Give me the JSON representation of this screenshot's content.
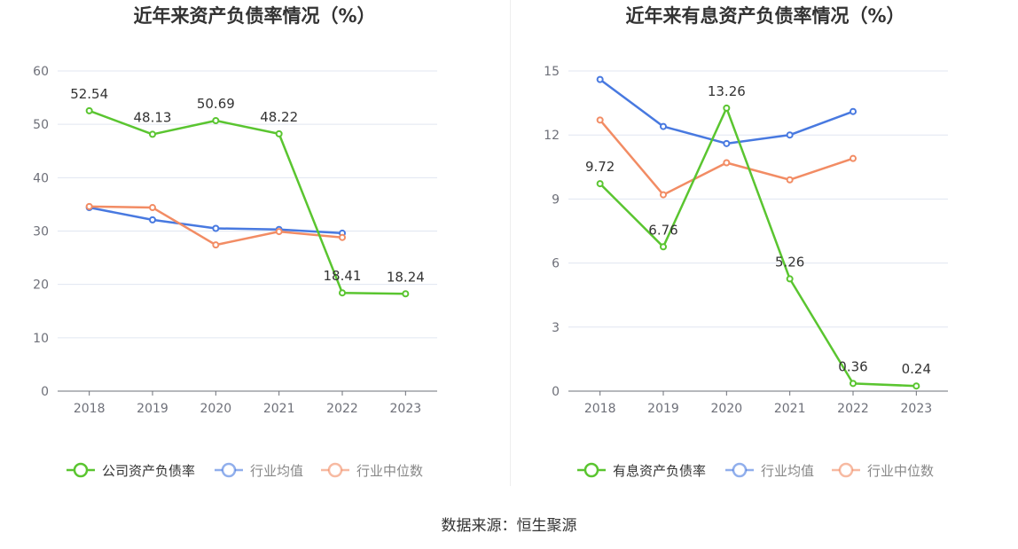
{
  "source_text": "数据来源：恒生聚源",
  "colors": {
    "company": "#5ac530",
    "average": "#4879e0",
    "median": "#f28c64"
  },
  "chart_data": [
    {
      "type": "line",
      "title": "近年来资产负债率情况（%）",
      "x": [
        "2018",
        "2019",
        "2020",
        "2021",
        "2022",
        "2023"
      ],
      "ylim": [
        0,
        60
      ],
      "yticks": [
        0,
        10,
        20,
        30,
        40,
        50,
        60
      ],
      "grid": true,
      "legend_position": "bottom",
      "series": [
        {
          "name": "公司资产负债率",
          "color": "#5ac530",
          "values": [
            52.54,
            48.13,
            50.69,
            48.22,
            18.41,
            18.24
          ],
          "labels": [
            "52.54",
            "48.13",
            "50.69",
            "48.22",
            "18.41",
            "18.24"
          ]
        },
        {
          "name": "行业均值",
          "color": "#4879e0",
          "values": [
            34.4,
            32.1,
            30.5,
            30.3,
            29.6,
            null
          ]
        },
        {
          "name": "行业中位数",
          "color": "#f28c64",
          "values": [
            34.6,
            34.4,
            27.4,
            29.9,
            28.8,
            null
          ]
        }
      ]
    },
    {
      "type": "line",
      "title": "近年来有息资产负债率情况（%）",
      "x": [
        "2018",
        "2019",
        "2020",
        "2021",
        "2022",
        "2023"
      ],
      "ylim": [
        0,
        15
      ],
      "yticks": [
        0,
        3,
        6,
        9,
        12,
        15
      ],
      "grid": true,
      "legend_position": "bottom",
      "series": [
        {
          "name": "有息资产负债率",
          "color": "#5ac530",
          "values": [
            9.72,
            6.76,
            13.26,
            5.26,
            0.36,
            0.24
          ],
          "labels": [
            "9.72",
            "6.76",
            "13.26",
            "5.26",
            "0.36",
            "0.24"
          ]
        },
        {
          "name": "行业均值",
          "color": "#4879e0",
          "values": [
            14.6,
            12.4,
            11.6,
            12.0,
            13.1,
            null
          ]
        },
        {
          "name": "行业中位数",
          "color": "#f28c64",
          "values": [
            12.7,
            9.2,
            10.7,
            9.9,
            10.9,
            null
          ]
        }
      ]
    }
  ]
}
